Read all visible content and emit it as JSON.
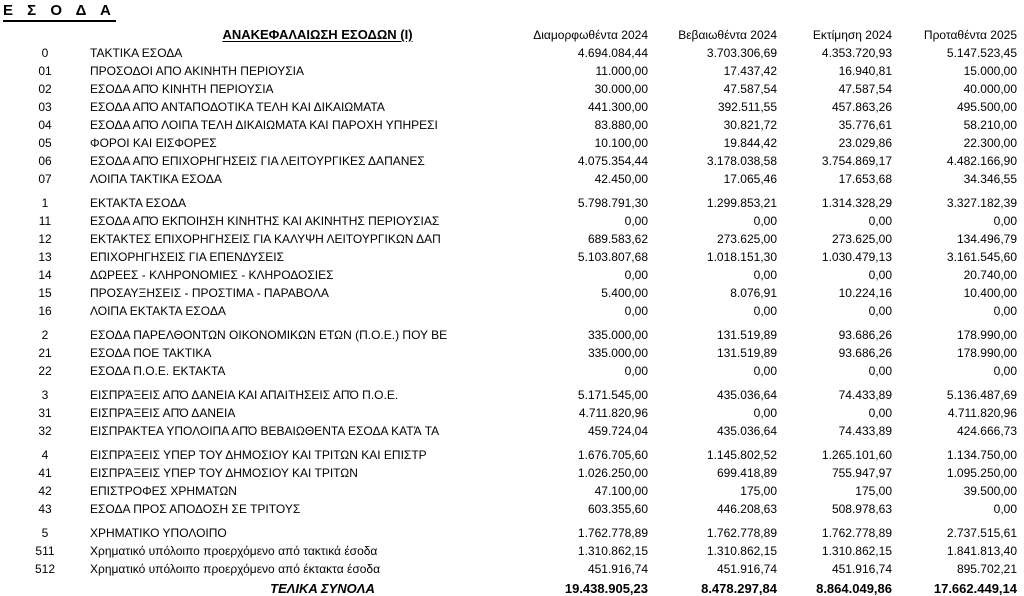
{
  "page_title": "Ε Σ Ο Δ Α",
  "section_title": "ΑΝΑΚΕΦΑΛΑΙΩΣΗ ΕΣΟΔΩΝ (Ι)",
  "columns": [
    "Διαμορφωθέντα 2024",
    "Βεβαιωθέντα 2024",
    "Εκτίμηση 2024",
    "Προταθέντα 2025"
  ],
  "groups": [
    {
      "rows": [
        {
          "code": "0",
          "label": "ΤΑΚΤΙΚΑ ΕΣΟΔΑ",
          "values": [
            "4.694.084,44",
            "3.703.306,69",
            "4.353.720,93",
            "5.147.523,45"
          ]
        },
        {
          "code": "01",
          "label": "ΠΡΟΣΟΔΟΙ ΑΠΟ ΑΚΙΝΗΤΗ ΠΕΡΙΟΥΣΙΑ",
          "values": [
            "11.000,00",
            "17.437,42",
            "16.940,81",
            "15.000,00"
          ]
        },
        {
          "code": "02",
          "label": "ΕΣΟΔΑ ΑΠΌ ΚΙΝΗΤΗ ΠΕΡΙΟΥΣΙΑ",
          "values": [
            "30.000,00",
            "47.587,54",
            "47.587,54",
            "40.000,00"
          ]
        },
        {
          "code": "03",
          "label": "ΕΣΟΔΑ ΑΠΌ ΑΝΤΑΠΟΔΟΤΙΚΑ ΤΕΛΗ ΚΑΙ ΔΙΚΑΙΩΜΑΤΑ",
          "values": [
            "441.300,00",
            "392.511,55",
            "457.863,26",
            "495.500,00"
          ]
        },
        {
          "code": "04",
          "label": "ΕΣΟΔΑ ΑΠΌ ΛΟΙΠΑ ΤΕΛΗ ΔΙΚΑΙΩΜΑΤΑ ΚΑΙ ΠΑΡΟΧΗ ΥΠΗΡΕΣΙ",
          "values": [
            "83.880,00",
            "30.821,72",
            "35.776,61",
            "58.210,00"
          ]
        },
        {
          "code": "05",
          "label": "ΦΟΡΟΙ ΚΑΙ ΕΙΣΦΟΡΕΣ",
          "values": [
            "10.100,00",
            "19.844,42",
            "23.029,86",
            "22.300,00"
          ]
        },
        {
          "code": "06",
          "label": "ΕΣΟΔΑ ΑΠΌ ΕΠΙΧΟΡΗΓΗΣΕΙΣ ΓΙΑ ΛΕΙΤΟΥΡΓΙΚΕΣ ΔΑΠΑΝΕΣ",
          "values": [
            "4.075.354,44",
            "3.178.038,58",
            "3.754.869,17",
            "4.482.166,90"
          ]
        },
        {
          "code": "07",
          "label": "ΛΟΙΠΑ ΤΑΚΤΙΚΑ ΕΣΟΔΑ",
          "values": [
            "42.450,00",
            "17.065,46",
            "17.653,68",
            "34.346,55"
          ]
        }
      ]
    },
    {
      "rows": [
        {
          "code": "1",
          "label": "ΕΚΤΑΚΤΑ ΕΣΟΔΑ",
          "values": [
            "5.798.791,30",
            "1.299.853,21",
            "1.314.328,29",
            "3.327.182,39"
          ]
        },
        {
          "code": "11",
          "label": "ΕΣΟΔΑ ΑΠΌ ΕΚΠΟΙΗΣΗ ΚΙΝΗΤΗΣ ΚΑΙ ΑΚΙΝΗΤΗΣ ΠΕΡΙΟΥΣΙΑΣ",
          "values": [
            "0,00",
            "0,00",
            "0,00",
            "0,00"
          ]
        },
        {
          "code": "12",
          "label": "ΕΚΤΑΚΤΕΣ ΕΠΙΧΟΡΗΓΗΣΕΙΣ ΓΙΑ ΚΑΛΥΨΗ ΛΕΙΤΟΥΡΓΙΚΩΝ ΔΑΠ",
          "values": [
            "689.583,62",
            "273.625,00",
            "273.625,00",
            "134.496,79"
          ]
        },
        {
          "code": "13",
          "label": "ΕΠΙΧΟΡΗΓΗΣΕΙΣ ΓΙΑ ΕΠΕΝΔΥΣΕΙΣ",
          "values": [
            "5.103.807,68",
            "1.018.151,30",
            "1.030.479,13",
            "3.161.545,60"
          ]
        },
        {
          "code": "14",
          "label": "ΔΩΡΕΕΣ - ΚΛΗΡΟΝΟΜΙΕΣ - ΚΛΗΡΟΔΟΣΙΕΣ",
          "values": [
            "0,00",
            "0,00",
            "0,00",
            "20.740,00"
          ]
        },
        {
          "code": "15",
          "label": "ΠΡΟΣΑΥΞΗΣΕΙΣ - ΠΡΟΣΤΙΜΑ - ΠΑΡΑΒΟΛΑ",
          "values": [
            "5.400,00",
            "8.076,91",
            "10.224,16",
            "10.400,00"
          ]
        },
        {
          "code": "16",
          "label": "ΛΟΙΠΑ ΕΚΤΑΚΤΑ ΕΣΟΔΑ",
          "values": [
            "0,00",
            "0,00",
            "0,00",
            "0,00"
          ]
        }
      ]
    },
    {
      "rows": [
        {
          "code": "2",
          "label": "ΕΣΟΔΑ ΠΑΡΕΛΘΟΝΤΩΝ ΟΙΚΟΝΟΜΙΚΩΝ ΕΤΩΝ (Π.Ο.Ε.) ΠΟΥ ΒΕ",
          "values": [
            "335.000,00",
            "131.519,89",
            "93.686,26",
            "178.990,00"
          ]
        },
        {
          "code": "21",
          "label": "ΕΣΟΔΑ ΠΟΕ ΤΑΚΤΙΚΑ",
          "values": [
            "335.000,00",
            "131.519,89",
            "93.686,26",
            "178.990,00"
          ]
        },
        {
          "code": "22",
          "label": "ΕΣΟΔΑ Π.Ο.Ε. ΕΚΤΑΚΤΑ",
          "values": [
            "0,00",
            "0,00",
            "0,00",
            "0,00"
          ]
        }
      ]
    },
    {
      "rows": [
        {
          "code": "3",
          "label": "ΕΙΣΠΡΆΞΕΙΣ ΑΠΌ ΔΑΝΕΙΑ ΚΑΙ ΑΠΑΙΤΗΣΕΙΣ ΑΠΌ Π.Ο.Ε.",
          "values": [
            "5.171.545,00",
            "435.036,64",
            "74.433,89",
            "5.136.487,69"
          ]
        },
        {
          "code": "31",
          "label": "ΕΙΣΠΡΆΞΕΙΣ ΑΠΌ ΔΑΝΕΙΑ",
          "values": [
            "4.711.820,96",
            "0,00",
            "0,00",
            "4.711.820,96"
          ]
        },
        {
          "code": "32",
          "label": "ΕΙΣΠΡΑΚΤΕΑ ΥΠΟΛΟΙΠΑ ΑΠΌ ΒΕΒΑΙΩΘΕΝΤΑ ΕΣΟΔΑ ΚΑΤΆ ΤΑ",
          "values": [
            "459.724,04",
            "435.036,64",
            "74.433,89",
            "424.666,73"
          ]
        }
      ]
    },
    {
      "rows": [
        {
          "code": "4",
          "label": "ΕΙΣΠΡΆΞΕΙΣ ΥΠΕΡ ΤΟΥ ΔΗΜΟΣΙΟΥ ΚΑΙ ΤΡΙΤΩΝ ΚΑΙ ΕΠΙΣΤΡ",
          "values": [
            "1.676.705,60",
            "1.145.802,52",
            "1.265.101,60",
            "1.134.750,00"
          ]
        },
        {
          "code": "41",
          "label": "ΕΙΣΠΡΆΞΕΙΣ ΥΠΕΡ ΤΟΥ ΔΗΜΟΣΙΟΥ ΚΑΙ ΤΡΙΤΩΝ",
          "values": [
            "1.026.250,00",
            "699.418,89",
            "755.947,97",
            "1.095.250,00"
          ]
        },
        {
          "code": "42",
          "label": "ΕΠΙΣΤΡΟΦΕΣ ΧΡΗΜΑΤΩΝ",
          "values": [
            "47.100,00",
            "175,00",
            "175,00",
            "39.500,00"
          ]
        },
        {
          "code": "43",
          "label": "ΕΣΟΔΑ ΠΡΟΣ ΑΠΟΔΟΣΗ ΣΕ ΤΡΙΤΟΥΣ",
          "values": [
            "603.355,60",
            "446.208,63",
            "508.978,63",
            "0,00"
          ]
        }
      ]
    },
    {
      "rows": [
        {
          "code": "5",
          "label": "ΧΡΗΜΑΤΙΚΟ ΥΠΟΛΟΙΠΟ",
          "values": [
            "1.762.778,89",
            "1.762.778,89",
            "1.762.778,89",
            "2.737.515,61"
          ]
        },
        {
          "code": "511",
          "label": "Χρηματικό υπόλοιπο προερχόμενο από τακτικά έσοδα",
          "values": [
            "1.310.862,15",
            "1.310.862,15",
            "1.310.862,15",
            "1.841.813,40"
          ]
        },
        {
          "code": "512",
          "label": "Χρηματικό υπόλοιπο προερχόμενο από έκτακτα έσοδα",
          "values": [
            "451.916,74",
            "451.916,74",
            "451.916,74",
            "895.702,21"
          ]
        }
      ]
    }
  ],
  "totals": {
    "label": "ΤΕΛΙΚΑ ΣΥΝΟΛΑ",
    "values": [
      "19.438.905,23",
      "8.478.297,84",
      "8.864.049,86",
      "17.662.449,14"
    ]
  },
  "colors": {
    "text": "#000000",
    "background": "#ffffff"
  }
}
